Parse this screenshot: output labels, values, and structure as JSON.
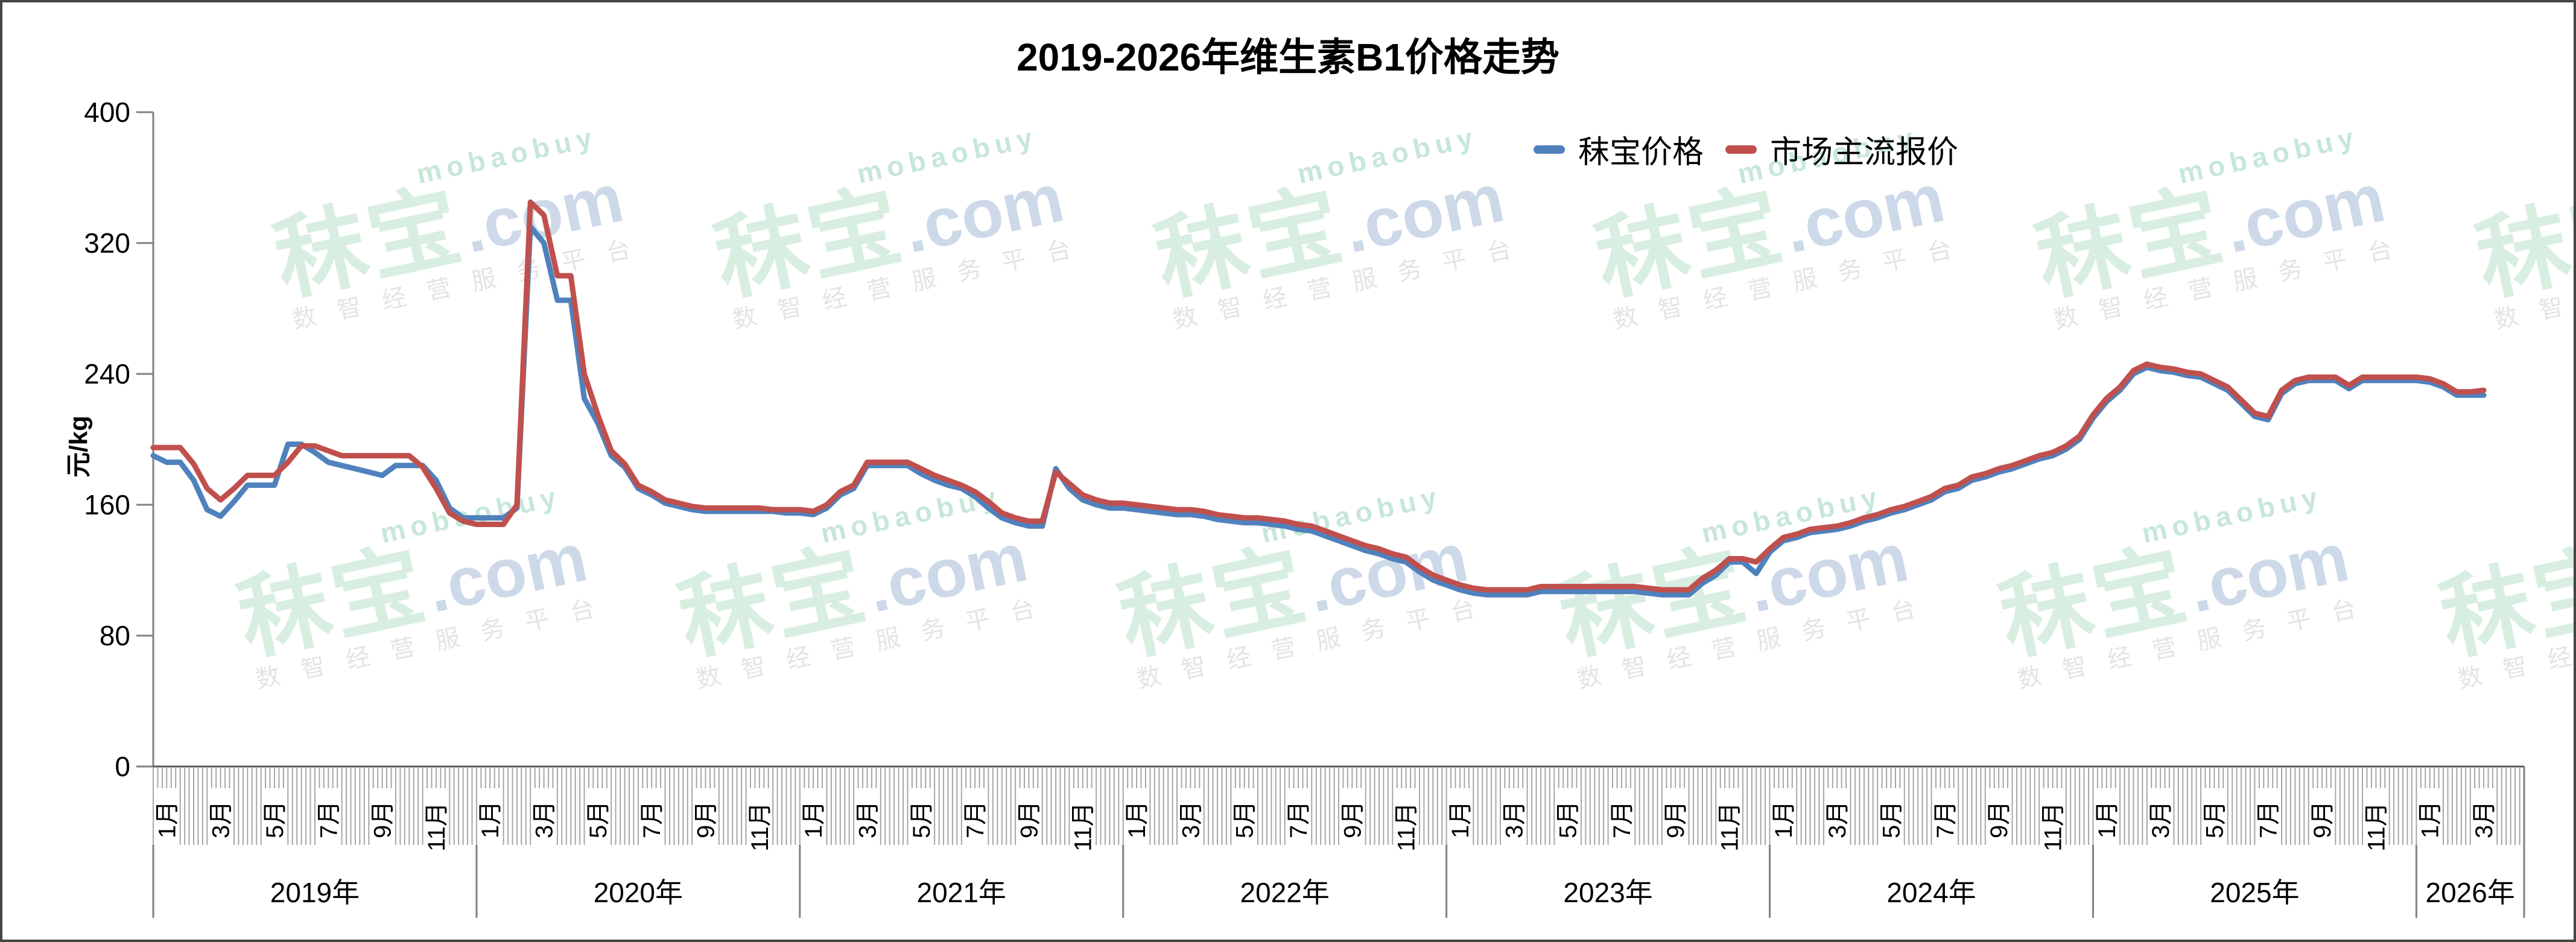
{
  "title": "2019-2026年维生素B1价格走势",
  "legend": [
    {
      "label": "秣宝价格",
      "color": "#4F81BD"
    },
    {
      "label": "市场主流报价",
      "color": "#C0504D"
    }
  ],
  "y_axis": {
    "unit_label": "元/kg",
    "tick_values": [
      0,
      80,
      160,
      240,
      320,
      400
    ]
  },
  "x_axis": {
    "month_labels": [
      "1月",
      "3月",
      "5月",
      "7月",
      "9月",
      "11月"
    ],
    "last_year_month_labels": [
      "1月",
      "3月"
    ],
    "year_labels": [
      "2019年",
      "2020年",
      "2021年",
      "2022年",
      "2023年",
      "2024年",
      "2025年",
      "2026年"
    ]
  },
  "watermark": {
    "latin": "mobaobuy",
    "brand": "秣宝",
    "domain": ".com",
    "tagline": "数智经营服务平台",
    "latin_color": "#c7e7d8",
    "brand_color": "#d8eee1",
    "domain_color": "#cdd9e9",
    "tagline_color": "#e4e4e4"
  },
  "colors": {
    "axis_line": "#808080",
    "x_axis_line": "#595959",
    "tick_minor": "#a6a6a6",
    "year_separator": "#808080",
    "text": "#000000"
  },
  "chart_data": {
    "type": "line",
    "title": "2019-2026年维生素B1价格走势",
    "ylabel": "元/kg",
    "ylim": [
      0,
      400
    ],
    "x_start": "2019-01",
    "x_end": "2026-03",
    "x_step_months": 0.5,
    "grid": false,
    "legend_position": "top-right",
    "series": [
      {
        "name": "秣宝价格",
        "color": "#4F81BD",
        "values": [
          190,
          186,
          186,
          175,
          157,
          153,
          162,
          172,
          172,
          172,
          197,
          197,
          192,
          186,
          184,
          182,
          180,
          178,
          184,
          184,
          184,
          175,
          158,
          152,
          152,
          152,
          152,
          158,
          330,
          320,
          285,
          285,
          225,
          210,
          190,
          183,
          170,
          166,
          161,
          159,
          157,
          156,
          156,
          156,
          156,
          156,
          156,
          155,
          155,
          154,
          158,
          166,
          170,
          184,
          184,
          184,
          184,
          179,
          175,
          172,
          170,
          165,
          158,
          152,
          149,
          147,
          147,
          182,
          170,
          163,
          160,
          158,
          158,
          157,
          156,
          155,
          154,
          154,
          153,
          151,
          150,
          149,
          149,
          148,
          147,
          145,
          144,
          141,
          138,
          135,
          132,
          130,
          127,
          125,
          119,
          114,
          111,
          108,
          106,
          105,
          105,
          105,
          105,
          107,
          107,
          107,
          107,
          107,
          107,
          107,
          107,
          106,
          105,
          105,
          105,
          112,
          117,
          125,
          125,
          118,
          131,
          138,
          140,
          143,
          144,
          145,
          147,
          150,
          152,
          155,
          157,
          160,
          163,
          168,
          170,
          175,
          177,
          180,
          182,
          185,
          188,
          190,
          194,
          200,
          213,
          223,
          230,
          240,
          244,
          242,
          241,
          239,
          238,
          234,
          230,
          222,
          214,
          212,
          228,
          234,
          236,
          236,
          236,
          231,
          236,
          236,
          236,
          236,
          236,
          235,
          232,
          227,
          227,
          227
        ]
      },
      {
        "name": "市场主流报价",
        "color": "#C0504D",
        "values": [
          195,
          195,
          195,
          185,
          170,
          163,
          170,
          178,
          178,
          178,
          186,
          196,
          196,
          193,
          190,
          190,
          190,
          190,
          190,
          190,
          183,
          170,
          155,
          150,
          148,
          148,
          148,
          160,
          345,
          337,
          300,
          300,
          240,
          215,
          193,
          185,
          172,
          168,
          163,
          161,
          159,
          158,
          158,
          158,
          158,
          158,
          157,
          157,
          157,
          156,
          160,
          168,
          172,
          186,
          186,
          186,
          186,
          182,
          178,
          175,
          172,
          168,
          162,
          155,
          152,
          150,
          150,
          180,
          173,
          166,
          163,
          161,
          161,
          160,
          159,
          158,
          157,
          157,
          156,
          154,
          153,
          152,
          152,
          151,
          150,
          148,
          147,
          144,
          141,
          138,
          135,
          133,
          130,
          128,
          122,
          117,
          114,
          111,
          109,
          108,
          108,
          108,
          108,
          110,
          110,
          110,
          110,
          110,
          110,
          110,
          110,
          109,
          108,
          108,
          108,
          115,
          120,
          127,
          127,
          125,
          133,
          140,
          142,
          145,
          146,
          147,
          149,
          152,
          154,
          157,
          159,
          162,
          165,
          170,
          172,
          177,
          179,
          182,
          184,
          187,
          190,
          192,
          196,
          202,
          215,
          225,
          232,
          242,
          246,
          244,
          243,
          241,
          240,
          236,
          232,
          224,
          216,
          214,
          230,
          236,
          238,
          238,
          238,
          233,
          238,
          238,
          238,
          238,
          238,
          237,
          234,
          229,
          229,
          230
        ]
      }
    ]
  }
}
